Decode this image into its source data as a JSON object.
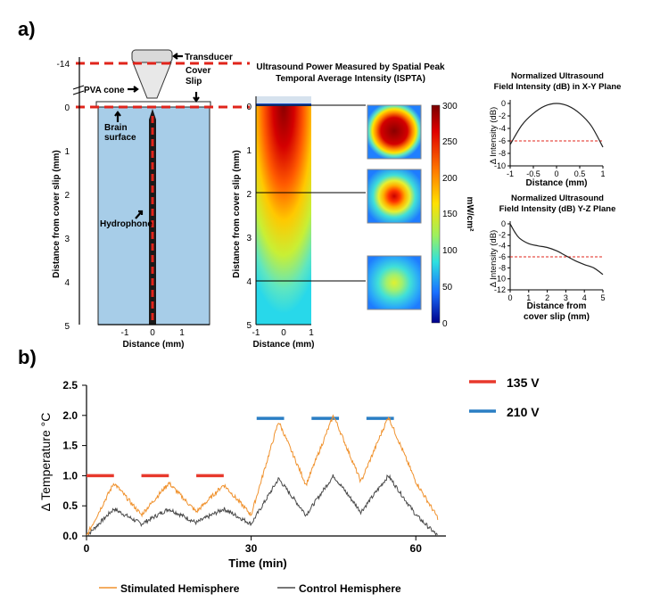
{
  "colors": {
    "red": "#e8392c",
    "blue": "#2a7ec4",
    "orange": "#f0922e",
    "gray": "#4a4a4a",
    "water": "#a7cde8",
    "dash": "#e0241b"
  },
  "panel_a": {
    "label": "a)",
    "schematic": {
      "transducer": "Transducer",
      "pva_cone": "PVA cone",
      "cover_slip_line1": "Cover",
      "cover_slip_line2": "Slip",
      "brain_line1": "Brain",
      "brain_line2": "surface",
      "hydrophone": "Hydrophone",
      "ylabel": "Distance  from cover slip (mm)",
      "xlabel": "Distance (mm)",
      "y_ticks": [
        "-14",
        "0",
        "1",
        "2",
        "3",
        "4",
        "5"
      ],
      "x_ticks": [
        "-1",
        "0",
        "1"
      ]
    },
    "heatmap": {
      "title_line1": "Ultrasound Power Measured by Spatial Peak",
      "title_line2": "Temporal Average Intensity (ISPTA)",
      "ylabel": "Distance  from cover slip (mm)",
      "xlabel": "Distance (mm)",
      "y_ticks": [
        "0",
        "1",
        "2",
        "3",
        "4",
        "5"
      ],
      "x_ticks": [
        "-1",
        "0",
        "1"
      ],
      "colorbar_label": "mW/cm²",
      "colorbar_ticks": [
        "300",
        "250",
        "200",
        "150",
        "100",
        "50",
        "0"
      ]
    }
  },
  "chart_data": [
    {
      "type": "line",
      "title": "Normalized Ultrasound Field Intensity (dB) in X-Y Plane",
      "title_line1": "Normalized Ultrasound",
      "title_line2": "Field Intensity (dB) in X-Y Plane",
      "xlabel": "Distance (mm)",
      "ylabel": "Δ Intensity (dB)",
      "xlim": [
        -1,
        1
      ],
      "ylim": [
        -10,
        0
      ],
      "x_ticks": [
        "-1",
        "-0.5",
        "0",
        "0.5",
        "1"
      ],
      "y_ticks": [
        "0",
        "-2",
        "-4",
        "-6",
        "-8",
        "-10"
      ],
      "threshold": -6,
      "series": [
        {
          "name": "X-Y profile",
          "x": [
            -1,
            -0.75,
            -0.5,
            -0.25,
            0,
            0.25,
            0.5,
            0.75,
            1
          ],
          "y": [
            -6.6,
            -3.5,
            -1.6,
            -0.4,
            0,
            -0.4,
            -1.6,
            -3.6,
            -7.0
          ]
        }
      ]
    },
    {
      "type": "line",
      "title": "Normalized Ultrasound Field Intensity (dB) Y-Z Plane",
      "title_line1": "Normalized Ultrasound",
      "title_line2": "Field Intensity (dB) Y-Z Plane",
      "xlabel_line1": "Distance from",
      "xlabel_line2": "cover slip (mm)",
      "ylabel": "Δ Intensity (dB)",
      "xlim": [
        0,
        5
      ],
      "ylim": [
        -12,
        0
      ],
      "x_ticks": [
        "0",
        "1",
        "2",
        "3",
        "4",
        "5"
      ],
      "y_ticks": [
        "0",
        "-2",
        "-4",
        "-6",
        "-8",
        "-10",
        "-12"
      ],
      "threshold": -6,
      "series": [
        {
          "name": "Y-Z profile",
          "x": [
            0,
            0.25,
            0.5,
            1,
            1.5,
            2,
            2.5,
            3,
            3.5,
            4,
            4.5,
            5
          ],
          "y": [
            0,
            -1.5,
            -2.6,
            -3.6,
            -4.0,
            -4.3,
            -4.9,
            -5.8,
            -6.7,
            -7.4,
            -8.0,
            -9.2
          ]
        }
      ]
    },
    {
      "type": "line",
      "title": "",
      "panel_label": "b)",
      "xlabel": "Time (min)",
      "ylabel": "Δ Temperature °C",
      "xlim": [
        0,
        65
      ],
      "ylim": [
        0,
        2.5
      ],
      "x_ticks": [
        "0",
        "30",
        "60"
      ],
      "y_ticks": [
        "0.0",
        "0.5",
        "1.0",
        "1.5",
        "2.0",
        "2.5"
      ],
      "legend_top": [
        {
          "name": "135 V",
          "color": "#e8392c"
        },
        {
          "name": "210 V",
          "color": "#2a7ec4"
        }
      ],
      "stimulus_bars": [
        {
          "voltage": "135 V",
          "start": 0,
          "end": 5,
          "level": 1.0
        },
        {
          "voltage": "135 V",
          "start": 10,
          "end": 15,
          "level": 1.0
        },
        {
          "voltage": "135 V",
          "start": 20,
          "end": 25,
          "level": 1.0
        },
        {
          "voltage": "210 V",
          "start": 31,
          "end": 36,
          "level": 1.95
        },
        {
          "voltage": "210 V",
          "start": 41,
          "end": 46,
          "level": 1.95
        },
        {
          "voltage": "210 V",
          "start": 51,
          "end": 56,
          "level": 1.95
        }
      ],
      "series": [
        {
          "name": "Stimulated Hemisphere",
          "color": "#f0922e",
          "x": [
            0,
            5,
            10,
            15,
            20,
            25,
            30,
            35,
            40,
            45,
            50,
            55,
            60,
            64
          ],
          "y": [
            0,
            0.88,
            0.35,
            0.88,
            0.4,
            0.85,
            0.35,
            1.9,
            0.85,
            2.0,
            0.9,
            1.98,
            0.9,
            0.3
          ]
        },
        {
          "name": "Control Hemisphere",
          "color": "#4a4a4a",
          "x": [
            0,
            5,
            10,
            15,
            20,
            25,
            30,
            35,
            40,
            45,
            50,
            55,
            60,
            64
          ],
          "y": [
            0,
            0.45,
            0.2,
            0.45,
            0.22,
            0.45,
            0.2,
            0.95,
            0.35,
            1.0,
            0.4,
            1.0,
            0.35,
            0
          ]
        }
      ]
    }
  ]
}
